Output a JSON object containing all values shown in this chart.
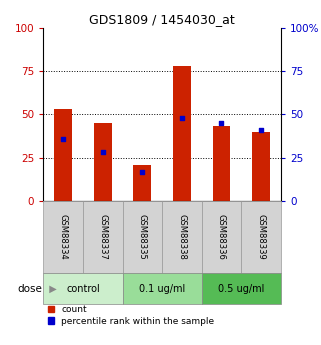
{
  "title": "GDS1809 / 1454030_at",
  "samples": [
    "GSM88334",
    "GSM88337",
    "GSM88335",
    "GSM88338",
    "GSM88336",
    "GSM88339"
  ],
  "red_values": [
    53,
    45,
    21,
    78,
    43,
    40
  ],
  "blue_values": [
    36,
    28,
    17,
    48,
    45,
    41
  ],
  "ylim": [
    0,
    100
  ],
  "yticks": [
    0,
    25,
    50,
    75,
    100
  ],
  "ytick_labels_left": [
    "0",
    "25",
    "50",
    "75",
    "100"
  ],
  "ytick_labels_right": [
    "0",
    "25",
    "50",
    "75",
    "100%"
  ],
  "left_tick_color": "#cc0000",
  "right_tick_color": "#0000cc",
  "bar_color": "#cc2200",
  "dot_color": "#0000cc",
  "title_fontsize": 9,
  "sample_bg_color": "#d3d3d3",
  "sample_edge_color": "#999999",
  "dose_groups": [
    {
      "label": "control",
      "start": 0,
      "end": 1,
      "color": "#cceecc"
    },
    {
      "label": "0.1 ug/ml",
      "start": 2,
      "end": 3,
      "color": "#99dd99"
    },
    {
      "label": "0.5 ug/ml",
      "start": 4,
      "end": 5,
      "color": "#55bb55"
    }
  ],
  "dose_label": "dose",
  "legend_items": [
    {
      "label": "count",
      "color": "#cc2200"
    },
    {
      "label": "percentile rank within the sample",
      "color": "#0000cc"
    }
  ]
}
